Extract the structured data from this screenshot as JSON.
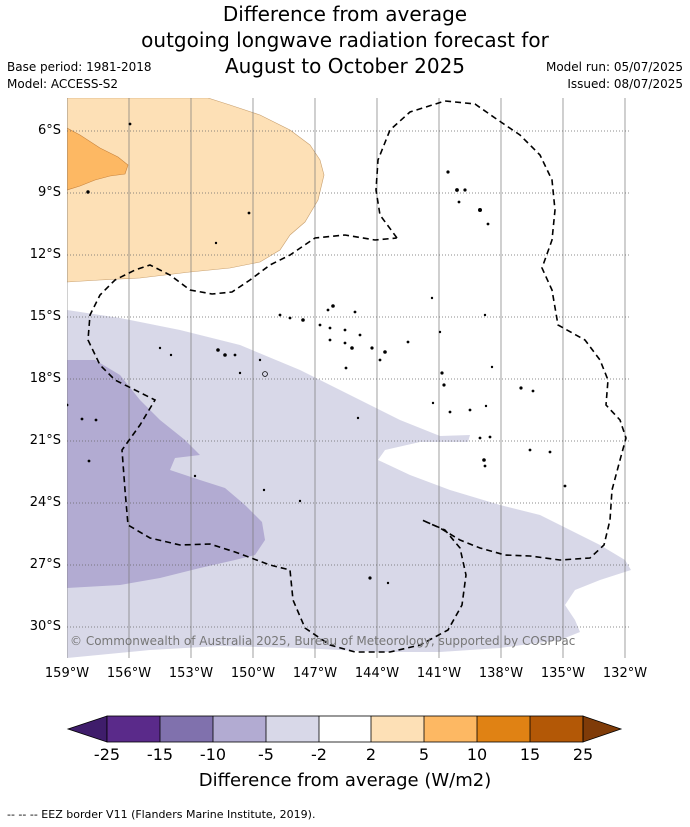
{
  "title": {
    "line1": "Difference from average",
    "line2": "outgoing longwave radiation forecast for",
    "line3": "August to October 2025"
  },
  "meta": {
    "base_period": "Base period: 1981-2018",
    "model": "Model: ACCESS-S2",
    "model_run": "Model run: 05/07/2025",
    "issued": "Issued: 08/07/2025"
  },
  "map": {
    "lat_labels": [
      "6°S",
      "9°S",
      "12°S",
      "15°S",
      "18°S",
      "21°S",
      "24°S",
      "27°S",
      "30°S"
    ],
    "lon_labels": [
      "159°W",
      "156°W",
      "153°W",
      "150°W",
      "147°W",
      "144°W",
      "141°W",
      "138°W",
      "135°W",
      "132°W"
    ],
    "copyright": "© Commonwealth of Australia 2025, Bureau of Meteorology, supported by COSPPac",
    "ocean_color": "#ffffff",
    "land_outline_color": "#000000"
  },
  "colorbar": {
    "title": "Difference from average (W/m2)",
    "ticks": [
      "-25",
      "-15",
      "-10",
      "-5",
      "-2",
      "2",
      "5",
      "10",
      "15",
      "25"
    ],
    "colors": [
      "#3f1d6b",
      "#5a2a8a",
      "#8071ad",
      "#b2abd2",
      "#d8d8e8",
      "#ffffff",
      "#fde0b6",
      "#fdb863",
      "#e08214",
      "#b35806",
      "#7f3b08"
    ]
  },
  "legend": {
    "eez": "--  --  -- EEZ border V11 (Flanders Marine Institute, 2019)."
  }
}
